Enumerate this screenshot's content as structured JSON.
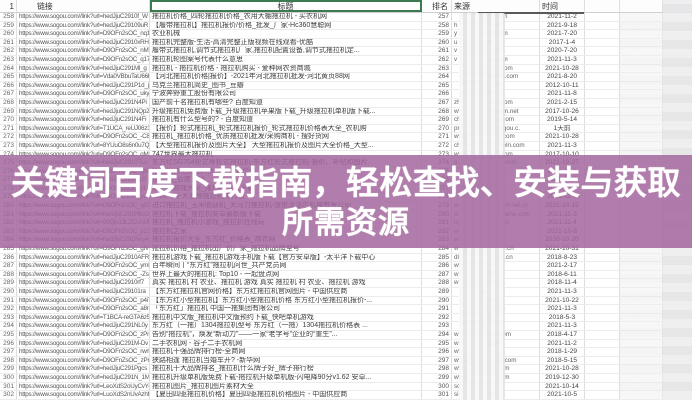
{
  "header": {
    "index": "1",
    "link": "链接",
    "title": "标题",
    "rank": "排名",
    "source": "来源",
    "time": "时间"
  },
  "overlay": {
    "line1": "关键词百度下载指南，轻松查找、安装与获取",
    "line2": "所需资源",
    "bg_color": "#a4689e",
    "text_color": "#ffffff"
  },
  "link_prefix": "https://www.sogou.com//link?url=",
  "rows": [
    {
      "n": "258",
      "u": "hedJjuC2910f_W",
      "t": "拖拉机价格_四轮拖拉机价格_农用大棚拖拉机 - 买农机网",
      "r": "257",
      "sp": "",
      "ss": "ngji.com",
      "d": "2021-11-2"
    },
    {
      "n": "259",
      "u": "hedJjuC29109uR",
      "t": "【履带拖拉机】拖拉机报价/价格_批发_厂家-Hc360慧聪网",
      "r": "258",
      "sp": "h",
      "ss": ".com",
      "d": "2021-9-18"
    },
    {
      "n": "260",
      "u": "D9OFn2sOC_nq1m",
      "t": "农业机械",
      "r": "259",
      "sp": "y",
      "ss": "un.com",
      "d": "2021-7-20"
    },
    {
      "n": "261",
      "u": "hedJjuC2910xRH",
      "t": "拖拉机完整版-生活-高清完整正版视频在线观看-优酷",
      "r": "260",
      "sp": "u",
      "ss": "m",
      "d": "2017-1-4"
    },
    {
      "n": "262",
      "u": "D9OFn2sOC_nMTC",
      "t": "履带式拖拉机,调节式拖拉机厂家,拖拉机配置设备,调节式拖拉机定...",
      "r": "261",
      "sp": "v",
      "ss": "j.com",
      "d": "2020-7-20"
    },
    {
      "n": "263",
      "u": "D9OFn2sOC_q17r",
      "t": "拖拉机轮图案号代表什么意思",
      "r": "262",
      "sp": "v",
      "ss": "en.com",
      "d": "2021-11-3"
    },
    {
      "n": "264",
      "u": "hedJjuC291Ml_g",
      "t": "拖拉机 - 拖拉机价格 - 拖拉机购买 - 爱种网农资商城",
      "r": "263",
      "sp": "",
      "ss": "ongci.com",
      "d": "2021-10-28"
    },
    {
      "n": "265",
      "u": "Vda0VBbuTaU66H",
      "t": "【河北拖拉机价格|报价】-2021年河北拖拉机批发-河北黄页88网",
      "r": "264",
      "sp": "",
      "ss": "ngye88.com",
      "d": "2021-8-20"
    },
    {
      "n": "266",
      "u": "hedJjuC291P1d_j",
      "t": "乌克兰拖拉机简史_图书_豆瓣",
      "r": "265",
      "sp": "",
      "ss": "n.com",
      "d": "2012-10-11"
    },
    {
      "n": "267",
      "u": "D9OFn2sOC_ukyP",
      "t": "宁波奔野重工股份有限公司",
      "r": "266",
      "sp": "",
      "ss": ".cn",
      "d": "2021-11-8"
    },
    {
      "n": "268",
      "u": "hedJjuC291N4Pi",
      "t": "国产前十名拖拉机有哪些? 百度知道",
      "r": "267",
      "sp": "zh",
      "ss": "idu.com",
      "d": "2021-2-15"
    },
    {
      "n": "269",
      "u": "hedJjuC291NQp2",
      "t": "升级拖拉机免费版下载_升级拖拉机苹果版下载_升级拖拉机单机版下载...",
      "r": "268",
      "sp": "ww",
      "ss": "down.net",
      "d": "2017-10-26"
    },
    {
      "n": "270",
      "u": "hedJjuC291N4Fi",
      "t": "拖拉机有什么型号的? - 百度知道",
      "r": "269",
      "sp": "chi",
      "ss": "idu.com",
      "d": "2019-5-14"
    },
    {
      "n": "271",
      "u": "T1UCA_reUJ06z3",
      "t": "【报价】轮式拖拉机_轮式拖拉机报价_轮式拖拉机价格表大全_农机购",
      "r": "270",
      "sp": "pro",
      "ss": "ngjigou.c.",
      "d": "1天前"
    },
    {
      "n": "272",
      "u": "D9OFn2sOC_-C89",
      "t": "拖拉机_拖拉机价格_优质拖拉机批发/采购商机 - 搜好货网",
      "r": "271",
      "sp": "www",
      "ss": "8.com",
      "d": "2021-10-28"
    },
    {
      "n": "273",
      "u": "8YUuO8s6n0u7Qx",
      "t": "【大型拖拉机报价及图片大全】 大型拖拉机报价及图片大全价格_大型...",
      "r": "272",
      "sp": "china",
      "ss": "peln.com",
      "d": "2021-11-3"
    },
    {
      "n": "274",
      "u": "D9OFn2sOC_qMzH",
      "t": "747世界最大拖拉机",
      "r": "273",
      "sp": "www.",
      "ss": ".com",
      "d": "2017-10-10"
    },
    {
      "n": "275",
      "u": "hedJjuC2910TLu",
      "t": "东方红SG704轮式等轮式拖拉机-东方红轮式拖拉机-报价、补贴和图片",
      "r": "274",
      "sp": "a.n",
      "ss": "ong.com",
      "d": "2021-10-27"
    },
    {
      "n": "276",
      "u": "D9OFn2sOC_q8rW",
      "t": "拖拉机价格及图片大全 - 查看价格",
      "r": "275",
      "sp": "",
      "ss": "",
      "d": "2021-11-1"
    },
    {
      "n": "277",
      "u": "hedJjuC291Pq2f",
      "t": "拖拉机_百度百科",
      "r": "276",
      "sp": "",
      "ss": "",
      "d": "2021-10-9"
    },
    {
      "n": "278",
      "u": "D9OFn2sOC_pLr8",
      "t": "拖拉机游戏大全_拖拉机游戏下载",
      "r": "277",
      "sp": "",
      "ss": "",
      "d": "2021-11-4"
    },
    {
      "n": "279",
      "u": "D9OFn2sOC_pcb7",
      "t": "2020年十大名牌拖拉机排行榜",
      "r": "278",
      "sp": "",
      "ss": "",
      "d": "2021-11-4"
    },
    {
      "n": "280",
      "u": "D9OFn2sOC_qSXZ",
      "t": "进口拖拉机_玉米收获机_大马力拖拉机-道依茨法尔机械有限公司",
      "r": "279",
      "sp": "www.",
      "ss": "fahr.net.cn",
      "d": "2021-10-19"
    },
    {
      "n": "281",
      "u": "hedJjuC291P8cO",
      "t": "拖拉机下载_拖拉机安卓最新版下载",
      "r": "280",
      "sp": "china.",
      "ss": "game.com",
      "d": "2021-11-3"
    },
    {
      "n": "282",
      "u": "99Qip13LZCUnUU",
      "t": "拖拉机_拖拉机小游戏_拖拉机在线玩",
      "r": "281",
      "sp": "nyx.",
      "ss": ".com",
      "d": "2021-11-4"
    },
    {
      "n": "283",
      "u": "D9OFn2sOC_p23H",
      "t": "拖拉机之家",
      "r": "282",
      "sp": "www.",
      "ss": "n",
      "d": "2021-10-8"
    },
    {
      "n": "284",
      "u": "hedJjuC291Pwy4",
      "t": "拖拉机报价大全_东方红_价格表_商农网",
      "r": "283",
      "sp": "www.",
      "ss": "cn",
      "d": "2020-10-20"
    },
    {
      "n": "285",
      "u": "D9OFn2sOC_gtVM",
      "t": "拖拉机价格_拖拉机出厂价厂家_拖拉机品牌型号",
      "r": "284",
      "sp": "www.",
      "ss": "ss.cn",
      "d": "2021-10-31"
    },
    {
      "n": "286",
      "u": "hedJjuC2910AFR",
      "t": "拖拉机游戏下载_拖拉机游戏手机版下载【官方安卓版】-太平洋下载中心",
      "r": "285",
      "sp": "dl.",
      "ss": ".com.cn",
      "d": "2018-8-23"
    },
    {
      "n": "287",
      "u": "D9OFn2sOC_ymDU",
      "t": "百年瞬间丨“东方红”拖拉机问世_共产党员网",
      "r": "286",
      "sp": "ww",
      "ss": "n",
      "d": "2021-2-17"
    },
    {
      "n": "288",
      "u": "D9OFn2sOC_-ZsF",
      "t": "世界上最大的拖拉机: Top10 - 一起盘点网",
      "r": "287",
      "sp": "w",
      "ss": "m",
      "d": "2018-6-11"
    },
    {
      "n": "289",
      "u": "hedJjuC2910rf7",
      "t": "真实 拖拉机 村 农业、拖拉机 游戏 真实 拖拉机 村 农业、拖拉机 游戏",
      "r": "288",
      "sp": "w",
      "ss": "n",
      "d": "2018-11-4"
    },
    {
      "n": "290",
      "u": "hedJjuC29101ra",
      "t": "【东方红拖拉机官网价格】东方红拖拉机官网图片 - 中国供应商",
      "r": "289",
      "sp": "",
      "ss": "n",
      "d": "2021-11-3"
    },
    {
      "n": "291",
      "u": "D9OFn2sOC_p4iT",
      "t": "【东方红小型拖拉机】东方红小型拖拉机价格 东方红小型拖拉机报价-...",
      "r": "290",
      "sp": "",
      "ss": ".com",
      "d": "2021-10-22"
    },
    {
      "n": "292",
      "u": "D9OFn2sOC_a8r8",
      "t": "「东方红」拖拉机 中国一拖集团有限公司",
      "r": "291",
      "sp": "",
      "ss": "gw.com",
      "d": "2021-11-3"
    },
    {
      "n": "293",
      "u": "T1BCA-reGTA6z5",
      "t": "拖拉机中文版_拖拉机中文版预约下载_快吧单机游戏",
      "r": "292",
      "sp": "",
      "ss": "om",
      "d": "2018-5-3"
    },
    {
      "n": "294",
      "u": "hedJjuC291NL0y",
      "t": "东方红（一拖）1304拖拉机型号 东方红（一拖）1304拖拉机价格表 ...",
      "r": "293",
      "sp": "",
      "ss": "t",
      "d": "2021-11-3"
    },
    {
      "n": "295",
      "u": "D9OFn2sOC_zPnA",
      "t": "告别“拖拉机”，焕发“新动力”——一家“老字号”企业的“重生”...",
      "r": "294",
      "sp": "w",
      "ss": "net.com",
      "d": "2018-4-17"
    },
    {
      "n": "296",
      "u": "hedJjuC291M-Dv",
      "t": "二手农机网 - 谷子二手农机网",
      "r": "295",
      "sp": "w",
      "ss": "ji.cn",
      "d": "2021-11-2"
    },
    {
      "n": "297",
      "u": "D9OFn2sOC_rwrL",
      "t": "拖拉机十强品牌排行榜-全商网",
      "r": "296",
      "sp": "ww",
      "ss": "",
      "d": "2018-1-29"
    },
    {
      "n": "298",
      "u": "D9OFnZsOC_zPn6",
      "t": "狭路相逢 拖拉机当婚车开? -新华网",
      "r": "297",
      "sp": "www",
      "ss": "et.com",
      "d": "2018-5-15"
    },
    {
      "n": "299",
      "u": "hedJjuC291Pgcs",
      "t": "拖拉机十大品牌排名_拖拉机什么牌子好_牌子排行榜",
      "r": "298",
      "sp": "www",
      "ss": "com",
      "d": "2021-10-28"
    },
    {
      "n": "300",
      "u": "hedJjuC291N_1M",
      "t": "拖拉机升级单机版免费下载-拖拉机升级单机版-闪电降90分v1.62 安卓...",
      "r": "299",
      "sp": "www",
      "ss": "com",
      "d": "2019-12-30"
    },
    {
      "n": "301",
      "u": "LeoXdS2oUyCvY-",
      "t": "拖拉机图片_拖拉机图片素材大全",
      "r": "300",
      "sp": "so",
      "ss": "",
      "d": "2021-10-14"
    },
    {
      "n": "302",
      "u": "LuoXdS2nUvAzhf",
      "t": "【夏田四驱拖拉机价格】夏田四驱拖拉机价格图片 - 中国供应商",
      "r": "301",
      "sp": "si",
      "ss": "cn",
      "d": "2021-10-5"
    }
  ]
}
